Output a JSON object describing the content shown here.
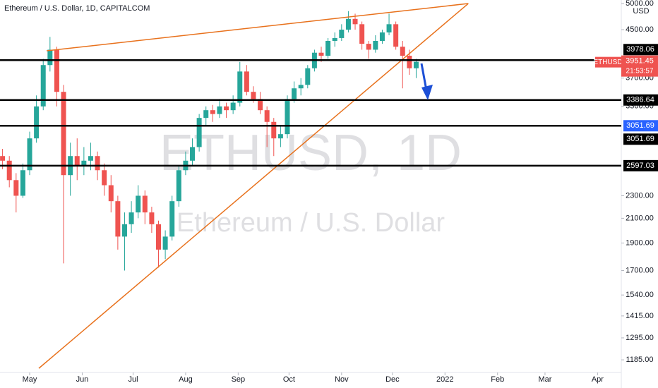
{
  "chart_data": {
    "type": "candlestick",
    "title": "Ethereum / U.S. Dollar, 1D, CAPITALCOM",
    "watermark": "ETHUSD, 1D",
    "watermark_sub": "Ethereum / U.S. Dollar",
    "symbol": "ETHUSD",
    "countdown": "21:53:57",
    "currency": "USD",
    "log_scale": true,
    "up_color": "#26a69a",
    "down_color": "#ef5350",
    "xlim": [
      -17.5,
      349
    ],
    "xticks": [
      {
        "value": 0,
        "label": "May"
      },
      {
        "value": 31,
        "label": "Jun"
      },
      {
        "value": 61,
        "label": "Jul"
      },
      {
        "value": 92,
        "label": "Aug"
      },
      {
        "value": 123,
        "label": "Sep"
      },
      {
        "value": 153,
        "label": "Oct"
      },
      {
        "value": 184,
        "label": "Nov"
      },
      {
        "value": 214,
        "label": "Dec"
      },
      {
        "value": 245,
        "label": "2022"
      },
      {
        "value": 276,
        "label": "Feb"
      },
      {
        "value": 304,
        "label": "Mar"
      },
      {
        "value": 335,
        "label": "Apr"
      }
    ],
    "ylim": [
      1126,
      5073
    ],
    "yticks": [
      {
        "value": 5000,
        "label": "5000.00"
      },
      {
        "value": 4500,
        "label": "4500.00"
      },
      {
        "value": 3700,
        "label": "3700.00"
      },
      {
        "value": 3300,
        "label": "3300.00"
      },
      {
        "value": 2300,
        "label": "2300.00"
      },
      {
        "value": 2100,
        "label": "2100.00"
      },
      {
        "value": 1900,
        "label": "1900.00"
      },
      {
        "value": 1700,
        "label": "1700.00"
      },
      {
        "value": 1540,
        "label": "1540.00"
      },
      {
        "value": 1415,
        "label": "1415.00"
      },
      {
        "value": 1295,
        "label": "1295.00"
      },
      {
        "value": 1185,
        "label": "1185.00"
      }
    ],
    "x": [
      -16,
      -12,
      -8,
      -4,
      0,
      4,
      8,
      12,
      16,
      20,
      24,
      28,
      32,
      36,
      40,
      44,
      48,
      52,
      56,
      60,
      64,
      68,
      72,
      76,
      80,
      84,
      88,
      92,
      96,
      100,
      104,
      108,
      112,
      116,
      120,
      124,
      128,
      132,
      136,
      140,
      144,
      148,
      152,
      156,
      160,
      164,
      168,
      172,
      176,
      180,
      184,
      188,
      192,
      196,
      200,
      204,
      208,
      212,
      216,
      220,
      224,
      228
    ],
    "open": [
      2700,
      2650,
      2450,
      2300,
      2550,
      2900,
      3300,
      3900,
      4150,
      3500,
      2500,
      2700,
      2600,
      2650,
      2700,
      2550,
      2400,
      2250,
      1950,
      2050,
      2150,
      2300,
      2150,
      2050,
      1850,
      1950,
      2250,
      2550,
      2650,
      2800,
      3150,
      3250,
      3200,
      3300,
      3250,
      3350,
      3800,
      3500,
      3400,
      3250,
      3100,
      2900,
      2950,
      3400,
      3550,
      3600,
      3850,
      4100,
      4050,
      4300,
      4350,
      4500,
      4700,
      4600,
      4250,
      4150,
      4300,
      4450,
      4600,
      4200,
      4050,
      3850
    ],
    "high": [
      2780,
      2700,
      2520,
      2620,
      2980,
      3450,
      4000,
      4370,
      4200,
      3600,
      2850,
      2900,
      2800,
      2850,
      2750,
      2620,
      2500,
      2300,
      2150,
      2250,
      2400,
      2350,
      2200,
      2080,
      2000,
      2300,
      2600,
      2750,
      2900,
      3200,
      3300,
      3320,
      3400,
      3350,
      3450,
      3950,
      3900,
      3580,
      3500,
      3300,
      3150,
      3050,
      3450,
      3650,
      3700,
      3900,
      4150,
      4200,
      4350,
      4450,
      4600,
      4850,
      4800,
      4650,
      4300,
      4400,
      4500,
      4800,
      4650,
      4300,
      4150,
      4000
    ],
    "low": [
      2560,
      2380,
      2150,
      2280,
      2500,
      2850,
      3250,
      3800,
      3300,
      1750,
      2300,
      2450,
      2500,
      2550,
      2450,
      2300,
      2150,
      1850,
      1700,
      1980,
      2100,
      2050,
      1980,
      1720,
      1780,
      1920,
      2200,
      2500,
      2600,
      2750,
      3050,
      3100,
      3150,
      3150,
      3200,
      3300,
      3450,
      3350,
      3200,
      2800,
      2700,
      2800,
      2900,
      3350,
      3450,
      3550,
      3800,
      3950,
      4000,
      4200,
      4300,
      4450,
      4500,
      4150,
      4000,
      4100,
      4250,
      4400,
      4150,
      3550,
      3750,
      3700
    ],
    "close": [
      2650,
      2450,
      2300,
      2550,
      2900,
      3300,
      3900,
      4150,
      3500,
      2500,
      2700,
      2600,
      2650,
      2700,
      2550,
      2400,
      2250,
      1950,
      2050,
      2150,
      2300,
      2150,
      2050,
      1850,
      1950,
      2250,
      2550,
      2650,
      2800,
      3150,
      3250,
      3200,
      3300,
      3250,
      3350,
      3800,
      3500,
      3400,
      3250,
      3100,
      2900,
      2950,
      3400,
      3550,
      3600,
      3850,
      4100,
      4050,
      4300,
      4350,
      4500,
      4700,
      4600,
      4250,
      4150,
      4300,
      4450,
      4600,
      4200,
      4050,
      3850,
      3951.45
    ],
    "levels": [
      3978.06,
      3386.64,
      3051.69,
      2597.03
    ],
    "trendlines": [
      {
        "color": "#e8711c",
        "points": [
          [
            5.4,
            1145
          ],
          [
            258.75,
            5001
          ]
        ]
      },
      {
        "color": "#e8711c",
        "points": [
          [
            10,
            4131
          ],
          [
            258.75,
            5001
          ]
        ]
      }
    ]
  }
}
